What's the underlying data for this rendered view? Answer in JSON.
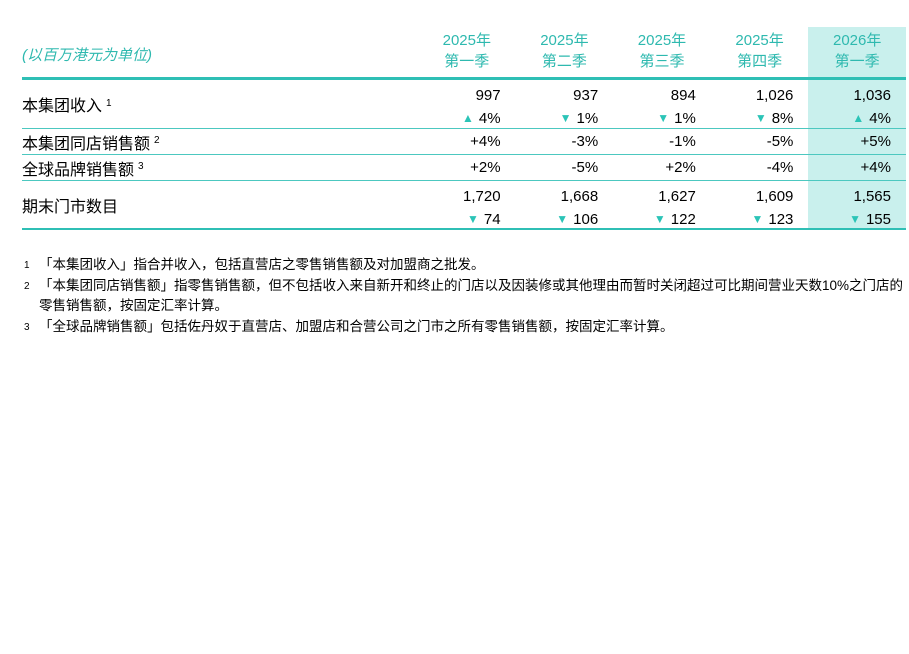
{
  "unit_label": "(以百万港元为单位)",
  "icons": {
    "up": "▲",
    "down": "▼"
  },
  "colors": {
    "accent": "#2fbfb5",
    "thin_line": "#4cc8c0",
    "header_text": "#2eb9af",
    "highlight_bg": "#c9f0ed",
    "triangle": "#2bc4b7",
    "text": "#000000"
  },
  "table": {
    "columns": [
      {
        "year": "2025年",
        "quarter": "第一季",
        "highlighted": false
      },
      {
        "year": "2025年",
        "quarter": "第二季",
        "highlighted": false
      },
      {
        "year": "2025年",
        "quarter": "第三季",
        "highlighted": false
      },
      {
        "year": "2025年",
        "quarter": "第四季",
        "highlighted": false
      },
      {
        "year": "2026年",
        "quarter": "第一季",
        "highlighted": true
      }
    ],
    "rows": [
      {
        "label": "本集团收入",
        "footnote_ref": "1",
        "values": [
          "997",
          "937",
          "894",
          "1,026",
          "1,036"
        ],
        "changes": [
          {
            "dir": "up",
            "value": "4%"
          },
          {
            "dir": "down",
            "value": "1%"
          },
          {
            "dir": "down",
            "value": "1%"
          },
          {
            "dir": "down",
            "value": "8%"
          },
          {
            "dir": "up",
            "value": "4%"
          }
        ]
      },
      {
        "label": "本集团同店销售额",
        "footnote_ref": "2",
        "values": [
          "+4%",
          "-3%",
          "-1%",
          "-5%",
          "+5%"
        ]
      },
      {
        "label": "全球品牌销售额",
        "footnote_ref": "3",
        "values": [
          "+2%",
          "-5%",
          "+2%",
          "-4%",
          "+4%"
        ]
      },
      {
        "label": "期末门市数目",
        "footnote_ref": "",
        "values": [
          "1,720",
          "1,668",
          "1,627",
          "1,609",
          "1,565"
        ],
        "changes": [
          {
            "dir": "down",
            "value": "74"
          },
          {
            "dir": "down",
            "value": "106"
          },
          {
            "dir": "down",
            "value": "122"
          },
          {
            "dir": "down",
            "value": "123"
          },
          {
            "dir": "down",
            "value": "155"
          }
        ]
      }
    ]
  },
  "footnotes": [
    {
      "ref": "1",
      "text": "「本集团收入」指合并收入，包括直营店之零售销售额及对加盟商之批发。"
    },
    {
      "ref": "2",
      "text": "「本集团同店销售额」指零售销售额，但不包括收入来自新开和终止的门店以及因装修或其他理由而暂时关闭超过可比期间营业天数10%之门店的零售销售额，按固定汇率计算。"
    },
    {
      "ref": "3",
      "text": "「全球品牌销售额」包括佐丹奴于直营店、加盟店和合营公司之门市之所有零售销售额，按固定汇率计算。"
    }
  ]
}
